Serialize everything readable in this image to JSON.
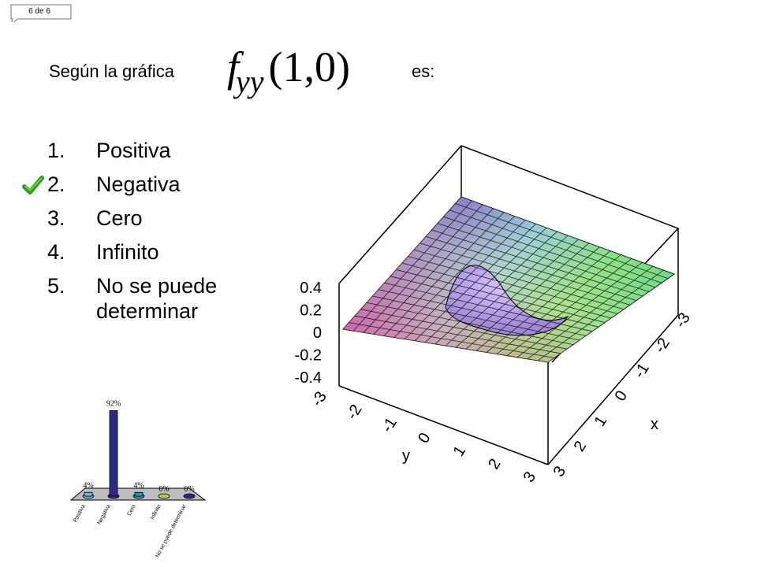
{
  "slide_counter": "6 de 6",
  "question": {
    "prefix": "Según la gráfica",
    "formula": {
      "func": "f",
      "subscript": "yy",
      "args": "(1,0)"
    },
    "suffix": "es:"
  },
  "options": [
    {
      "number": "1.",
      "label": "Positiva"
    },
    {
      "number": "2.",
      "label": "Negativa",
      "correct": true
    },
    {
      "number": "3.",
      "label": "Cero"
    },
    {
      "number": "4.",
      "label": "Infinito"
    },
    {
      "number": "5.",
      "label": "No se puede determinar"
    }
  ],
  "colors": {
    "check": "#2e9b16",
    "bar_main": "#2b2b85",
    "bar_light": "#7ab6cf",
    "bar_teal": "#1f9aa6",
    "bar_olive": "#bfc44a",
    "base": "#bdbdbd"
  },
  "surface_plot": {
    "z_ticks": [
      "0.4",
      "0.2",
      "0",
      "-0.2",
      "-0.4"
    ],
    "y_ticks": [
      "-3",
      "-2",
      "-1",
      "0",
      "1",
      "2",
      "3"
    ],
    "x_ticks": [
      "3",
      "2",
      "1",
      "0",
      "-1",
      "-2",
      "-3"
    ],
    "x_label": "x",
    "y_label": "y"
  },
  "chart_data": {
    "type": "bar",
    "categories": [
      "Positiva",
      "Negativa",
      "Cero",
      "Infinito",
      "No se puede determinar"
    ],
    "values": [
      4,
      92,
      4,
      0,
      0
    ],
    "value_labels": [
      "4%",
      "92%",
      "4%",
      "0%",
      "0%"
    ],
    "ylim": [
      0,
      100
    ]
  }
}
